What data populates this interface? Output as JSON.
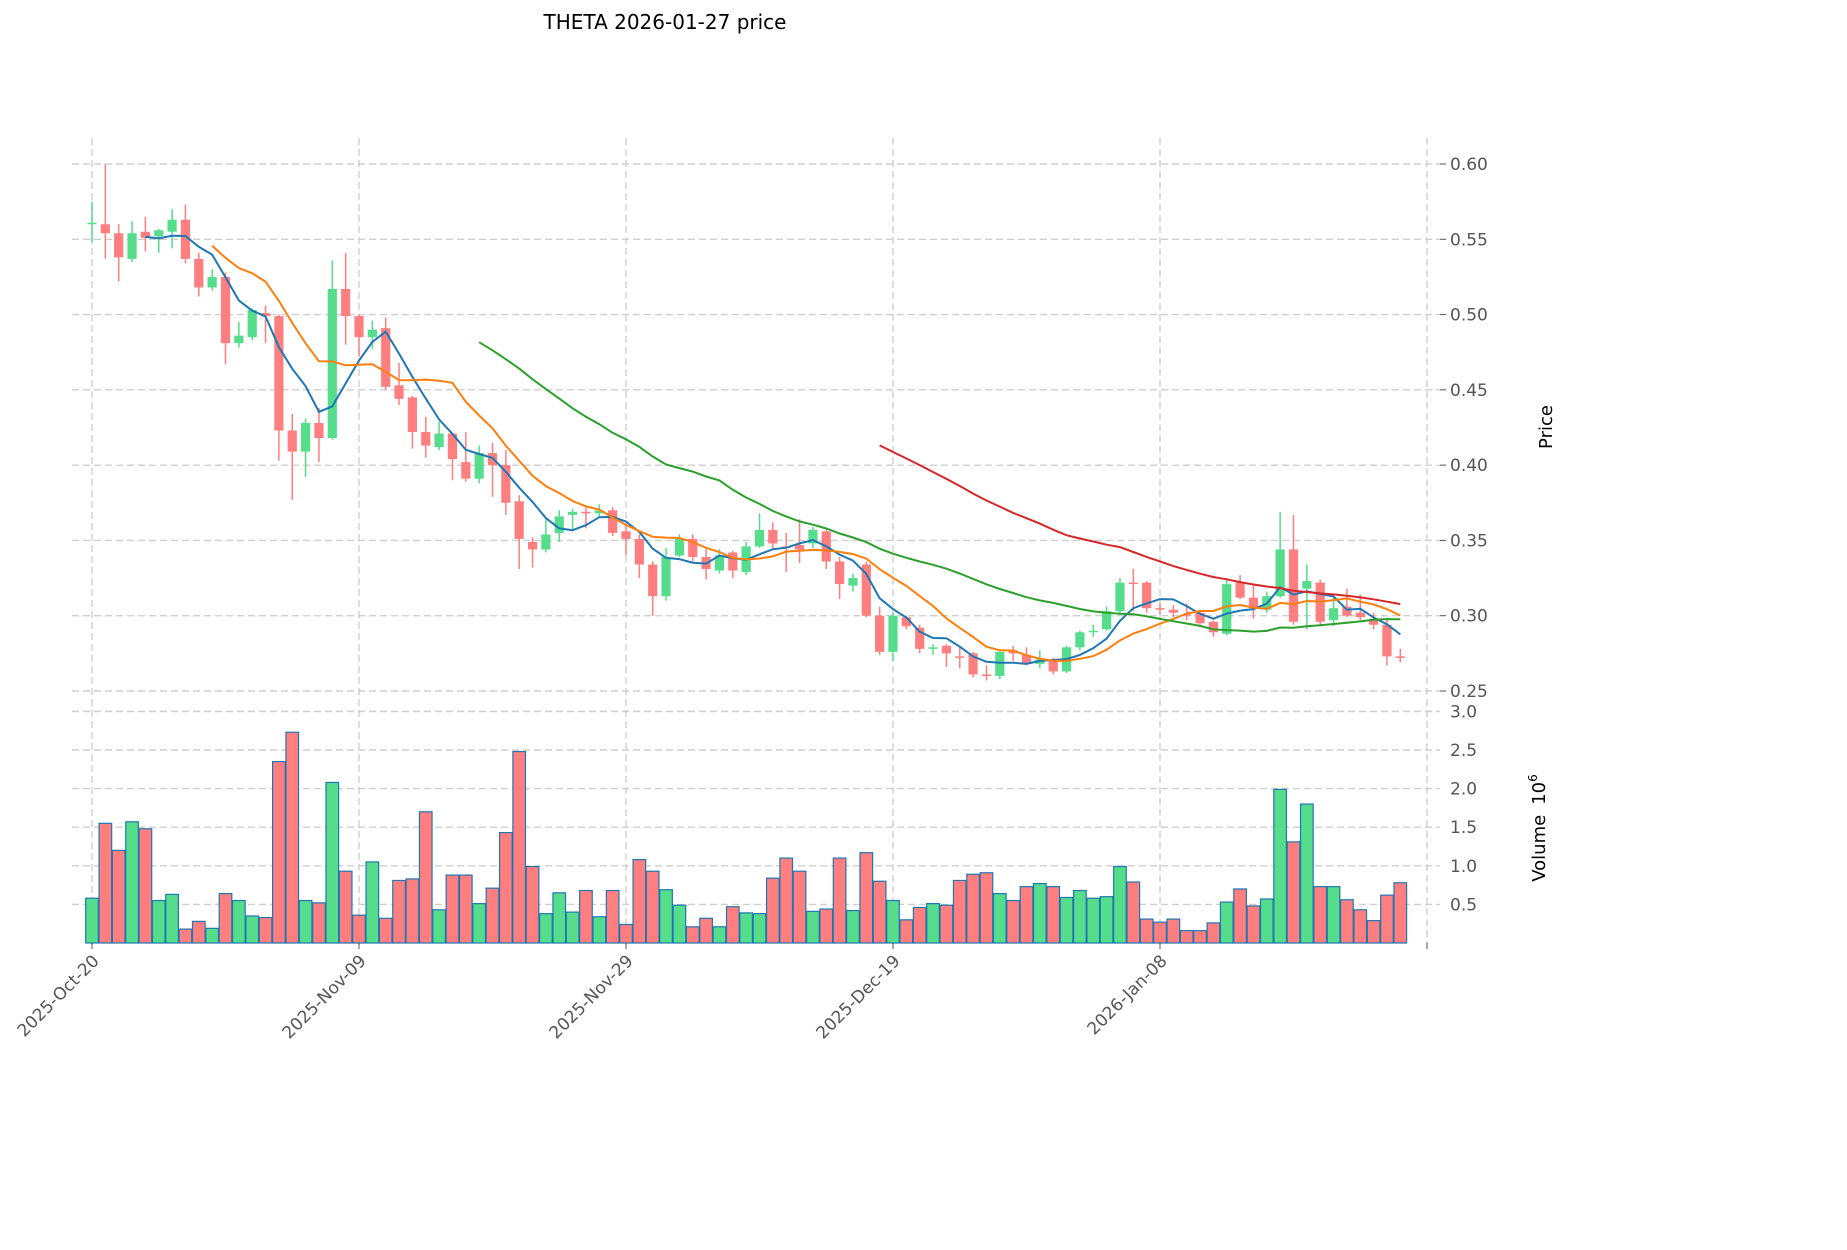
{
  "chart_data": {
    "type": "candlestick",
    "title": "THETA  2026-01-27  price",
    "ylabel": "Price",
    "volume_label": "Volume",
    "volume_exponent_base": "10",
    "volume_exponent": "6",
    "x_tick_labels": [
      "2025-Oct-20",
      "2025-Nov-09",
      "2025-Nov-29",
      "2025-Dec-19",
      "2026-Jan-08"
    ],
    "x_tick_step_days": 20,
    "price_ticks": [
      "0.25",
      "0.30",
      "0.35",
      "0.40",
      "0.45",
      "0.50",
      "0.55",
      "0.60"
    ],
    "volume_ticks": [
      "0.5",
      "1.0",
      "1.5",
      "2.0",
      "2.5",
      "3.0"
    ],
    "price_ylim": [
      0.25,
      0.6
    ],
    "volume_ylim": [
      0,
      3.0
    ],
    "moving_averages": [
      {
        "period": 5,
        "color": "#1f77b4"
      },
      {
        "period": 10,
        "color": "#ff7f0e"
      },
      {
        "period": 30,
        "color": "#2ca02c"
      },
      {
        "period": 60,
        "color": "#d62728"
      }
    ],
    "colors": {
      "up": "#55dd8b",
      "down": "#ff7f80",
      "volume_edge": "#1f77b4"
    },
    "ohlc_columns": [
      "open",
      "high",
      "low",
      "close"
    ],
    "ohlc": [
      [
        0.56,
        0.575,
        0.548,
        0.561
      ],
      [
        0.56,
        0.6,
        0.537,
        0.554
      ],
      [
        0.554,
        0.56,
        0.522,
        0.538
      ],
      [
        0.537,
        0.562,
        0.535,
        0.554
      ],
      [
        0.555,
        0.565,
        0.542,
        0.551
      ],
      [
        0.552,
        0.557,
        0.541,
        0.556
      ],
      [
        0.555,
        0.57,
        0.544,
        0.563
      ],
      [
        0.563,
        0.573,
        0.534,
        0.537
      ],
      [
        0.537,
        0.541,
        0.512,
        0.518
      ],
      [
        0.518,
        0.53,
        0.516,
        0.525
      ],
      [
        0.525,
        0.528,
        0.467,
        0.481
      ],
      [
        0.481,
        0.495,
        0.478,
        0.486
      ],
      [
        0.485,
        0.504,
        0.483,
        0.503
      ],
      [
        0.501,
        0.506,
        0.481,
        0.499
      ],
      [
        0.499,
        0.5,
        0.403,
        0.423
      ],
      [
        0.423,
        0.434,
        0.377,
        0.409
      ],
      [
        0.409,
        0.431,
        0.392,
        0.428
      ],
      [
        0.428,
        0.438,
        0.402,
        0.418
      ],
      [
        0.418,
        0.536,
        0.417,
        0.517
      ],
      [
        0.517,
        0.541,
        0.48,
        0.499
      ],
      [
        0.499,
        0.5,
        0.472,
        0.485
      ],
      [
        0.485,
        0.496,
        0.477,
        0.49
      ],
      [
        0.491,
        0.498,
        0.45,
        0.452
      ],
      [
        0.453,
        0.468,
        0.44,
        0.444
      ],
      [
        0.445,
        0.446,
        0.411,
        0.422
      ],
      [
        0.422,
        0.432,
        0.405,
        0.413
      ],
      [
        0.412,
        0.429,
        0.41,
        0.421
      ],
      [
        0.421,
        0.421,
        0.39,
        0.404
      ],
      [
        0.402,
        0.422,
        0.389,
        0.391
      ],
      [
        0.391,
        0.413,
        0.388,
        0.408
      ],
      [
        0.408,
        0.415,
        0.379,
        0.4
      ],
      [
        0.4,
        0.41,
        0.367,
        0.375
      ],
      [
        0.376,
        0.38,
        0.331,
        0.351
      ],
      [
        0.349,
        0.352,
        0.332,
        0.344
      ],
      [
        0.344,
        0.364,
        0.342,
        0.354
      ],
      [
        0.355,
        0.37,
        0.349,
        0.366
      ],
      [
        0.367,
        0.371,
        0.356,
        0.369
      ],
      [
        0.369,
        0.372,
        0.358,
        0.368
      ],
      [
        0.368,
        0.374,
        0.365,
        0.37
      ],
      [
        0.37,
        0.372,
        0.353,
        0.355
      ],
      [
        0.356,
        0.36,
        0.34,
        0.351
      ],
      [
        0.351,
        0.354,
        0.325,
        0.334
      ],
      [
        0.334,
        0.336,
        0.3,
        0.313
      ],
      [
        0.313,
        0.345,
        0.31,
        0.339
      ],
      [
        0.34,
        0.354,
        0.339,
        0.351
      ],
      [
        0.351,
        0.354,
        0.336,
        0.339
      ],
      [
        0.339,
        0.345,
        0.324,
        0.331
      ],
      [
        0.33,
        0.344,
        0.328,
        0.34
      ],
      [
        0.342,
        0.343,
        0.325,
        0.33
      ],
      [
        0.329,
        0.349,
        0.327,
        0.346
      ],
      [
        0.346,
        0.368,
        0.345,
        0.357
      ],
      [
        0.357,
        0.362,
        0.345,
        0.348
      ],
      [
        0.346,
        0.355,
        0.329,
        0.345
      ],
      [
        0.347,
        0.364,
        0.335,
        0.344
      ],
      [
        0.348,
        0.359,
        0.345,
        0.357
      ],
      [
        0.356,
        0.358,
        0.331,
        0.336
      ],
      [
        0.336,
        0.339,
        0.311,
        0.321
      ],
      [
        0.32,
        0.328,
        0.316,
        0.325
      ],
      [
        0.334,
        0.336,
        0.299,
        0.3
      ],
      [
        0.3,
        0.306,
        0.274,
        0.276
      ],
      [
        0.276,
        0.302,
        0.27,
        0.3
      ],
      [
        0.299,
        0.3,
        0.291,
        0.293
      ],
      [
        0.292,
        0.294,
        0.275,
        0.278
      ],
      [
        0.278,
        0.281,
        0.274,
        0.279
      ],
      [
        0.28,
        0.281,
        0.266,
        0.275
      ],
      [
        0.273,
        0.279,
        0.265,
        0.272
      ],
      [
        0.275,
        0.276,
        0.259,
        0.261
      ],
      [
        0.261,
        0.267,
        0.257,
        0.26
      ],
      [
        0.26,
        0.278,
        0.258,
        0.276
      ],
      [
        0.277,
        0.28,
        0.27,
        0.275
      ],
      [
        0.274,
        0.279,
        0.267,
        0.268
      ],
      [
        0.268,
        0.277,
        0.265,
        0.271
      ],
      [
        0.271,
        0.272,
        0.261,
        0.263
      ],
      [
        0.263,
        0.28,
        0.262,
        0.279
      ],
      [
        0.279,
        0.29,
        0.277,
        0.289
      ],
      [
        0.289,
        0.294,
        0.286,
        0.29
      ],
      [
        0.291,
        0.306,
        0.29,
        0.303
      ],
      [
        0.303,
        0.325,
        0.301,
        0.322
      ],
      [
        0.322,
        0.331,
        0.303,
        0.321
      ],
      [
        0.322,
        0.323,
        0.302,
        0.305
      ],
      [
        0.305,
        0.308,
        0.301,
        0.304
      ],
      [
        0.304,
        0.307,
        0.299,
        0.302
      ],
      [
        0.301,
        0.308,
        0.297,
        0.3
      ],
      [
        0.302,
        0.304,
        0.294,
        0.295
      ],
      [
        0.296,
        0.297,
        0.286,
        0.289
      ],
      [
        0.288,
        0.324,
        0.287,
        0.321
      ],
      [
        0.322,
        0.327,
        0.311,
        0.312
      ],
      [
        0.312,
        0.32,
        0.298,
        0.305
      ],
      [
        0.304,
        0.316,
        0.302,
        0.313
      ],
      [
        0.313,
        0.369,
        0.312,
        0.344
      ],
      [
        0.344,
        0.367,
        0.294,
        0.296
      ],
      [
        0.318,
        0.334,
        0.291,
        0.323
      ],
      [
        0.322,
        0.324,
        0.293,
        0.296
      ],
      [
        0.297,
        0.312,
        0.293,
        0.305
      ],
      [
        0.306,
        0.318,
        0.299,
        0.3
      ],
      [
        0.302,
        0.314,
        0.297,
        0.299
      ],
      [
        0.298,
        0.302,
        0.291,
        0.294
      ],
      [
        0.294,
        0.297,
        0.267,
        0.273
      ],
      [
        0.273,
        0.278,
        0.269,
        0.272
      ]
    ],
    "volume_millions": [
      0.58,
      1.55,
      1.2,
      1.57,
      1.48,
      0.55,
      0.63,
      0.18,
      0.28,
      0.19,
      0.64,
      0.55,
      0.35,
      0.33,
      2.35,
      2.73,
      0.55,
      0.52,
      2.08,
      0.93,
      0.36,
      1.05,
      0.32,
      0.81,
      0.83,
      1.7,
      0.43,
      0.88,
      0.88,
      0.51,
      0.71,
      1.43,
      2.48,
      0.99,
      0.38,
      0.65,
      0.4,
      0.68,
      0.34,
      0.68,
      0.24,
      1.08,
      0.93,
      0.69,
      0.49,
      0.21,
      0.32,
      0.21,
      0.47,
      0.39,
      0.38,
      0.84,
      1.1,
      0.93,
      0.41,
      0.44,
      1.1,
      0.42,
      1.17,
      0.8,
      0.55,
      0.3,
      0.46,
      0.51,
      0.49,
      0.81,
      0.89,
      0.91,
      0.64,
      0.55,
      0.73,
      0.77,
      0.73,
      0.59,
      0.68,
      0.58,
      0.6,
      0.99,
      0.79,
      0.31,
      0.27,
      0.31,
      0.16,
      0.16,
      0.26,
      0.53,
      0.7,
      0.48,
      0.57,
      1.99,
      1.31,
      1.8,
      0.73,
      0.73,
      0.56,
      0.43,
      0.29,
      0.62,
      0.78
    ]
  }
}
